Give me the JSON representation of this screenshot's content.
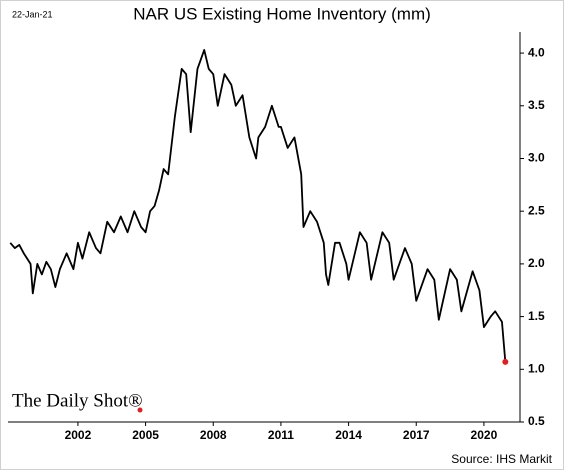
{
  "chart_data": {
    "type": "line",
    "title": "NAR US Existing Home Inventory (mm)",
    "date_note": "22-Jan-21",
    "source": "Source: IHS Markit",
    "logo": "The Daily Shot®",
    "x": [
      1999.0,
      1999.2,
      1999.4,
      1999.6,
      1999.9,
      2000.0,
      2000.2,
      2000.4,
      2000.6,
      2000.8,
      2001.0,
      2001.2,
      2001.5,
      2001.8,
      2002.0,
      2002.2,
      2002.5,
      2002.8,
      2003.0,
      2003.3,
      2003.6,
      2003.9,
      2004.2,
      2004.5,
      2004.8,
      2005.0,
      2005.2,
      2005.4,
      2005.6,
      2005.8,
      2006.0,
      2006.3,
      2006.6,
      2006.8,
      2007.0,
      2007.3,
      2007.6,
      2007.8,
      2008.0,
      2008.2,
      2008.5,
      2008.8,
      2009.0,
      2009.3,
      2009.6,
      2009.9,
      2010.0,
      2010.3,
      2010.6,
      2010.9,
      2011.0,
      2011.3,
      2011.6,
      2011.9,
      2012.0,
      2012.3,
      2012.6,
      2012.9,
      2013.0,
      2013.1,
      2013.4,
      2013.6,
      2013.9,
      2014.0,
      2014.5,
      2014.8,
      2015.0,
      2015.5,
      2015.8,
      2016.0,
      2016.5,
      2016.8,
      2017.0,
      2017.5,
      2017.8,
      2018.0,
      2018.5,
      2018.8,
      2019.0,
      2019.5,
      2019.8,
      2020.0,
      2020.3,
      2020.5,
      2020.8,
      2020.95
    ],
    "series": [
      {
        "color": "#000000",
        "last_point_color": "#e02020",
        "values": [
          2.2,
          2.15,
          2.18,
          2.1,
          2.0,
          1.72,
          2.0,
          1.9,
          2.02,
          1.95,
          1.78,
          1.95,
          2.1,
          1.95,
          2.2,
          2.05,
          2.3,
          2.15,
          2.1,
          2.4,
          2.3,
          2.45,
          2.3,
          2.5,
          2.35,
          2.3,
          2.5,
          2.55,
          2.7,
          2.9,
          2.85,
          3.4,
          3.85,
          3.8,
          3.25,
          3.85,
          4.03,
          3.85,
          3.8,
          3.5,
          3.8,
          3.7,
          3.5,
          3.6,
          3.2,
          3.0,
          3.2,
          3.3,
          3.5,
          3.3,
          3.3,
          3.1,
          3.2,
          2.85,
          2.35,
          2.5,
          2.4,
          2.2,
          1.9,
          1.8,
          2.2,
          2.2,
          2.0,
          1.85,
          2.3,
          2.2,
          1.85,
          2.3,
          2.2,
          1.85,
          2.15,
          2.0,
          1.65,
          1.95,
          1.85,
          1.47,
          1.95,
          1.85,
          1.55,
          1.93,
          1.75,
          1.4,
          1.5,
          1.55,
          1.45,
          1.07
        ]
      }
    ],
    "xlim": [
      1998.9,
      2021.6
    ],
    "xticks": [
      2002,
      2005,
      2008,
      2011,
      2014,
      2017,
      2020
    ],
    "ylim": [
      0.5,
      4.2
    ],
    "yticks": [
      {
        "value": 0.5,
        "label": "0.5"
      },
      {
        "value": 1.0,
        "label": "1.0"
      },
      {
        "value": 1.5,
        "label": "1.5"
      },
      {
        "value": 2.0,
        "label": "2.0"
      },
      {
        "value": 2.5,
        "label": "2.5"
      },
      {
        "value": 3.0,
        "label": "3.0"
      },
      {
        "value": 3.5,
        "label": "3.5"
      },
      {
        "value": 4.0,
        "label": "4.0"
      }
    ]
  }
}
